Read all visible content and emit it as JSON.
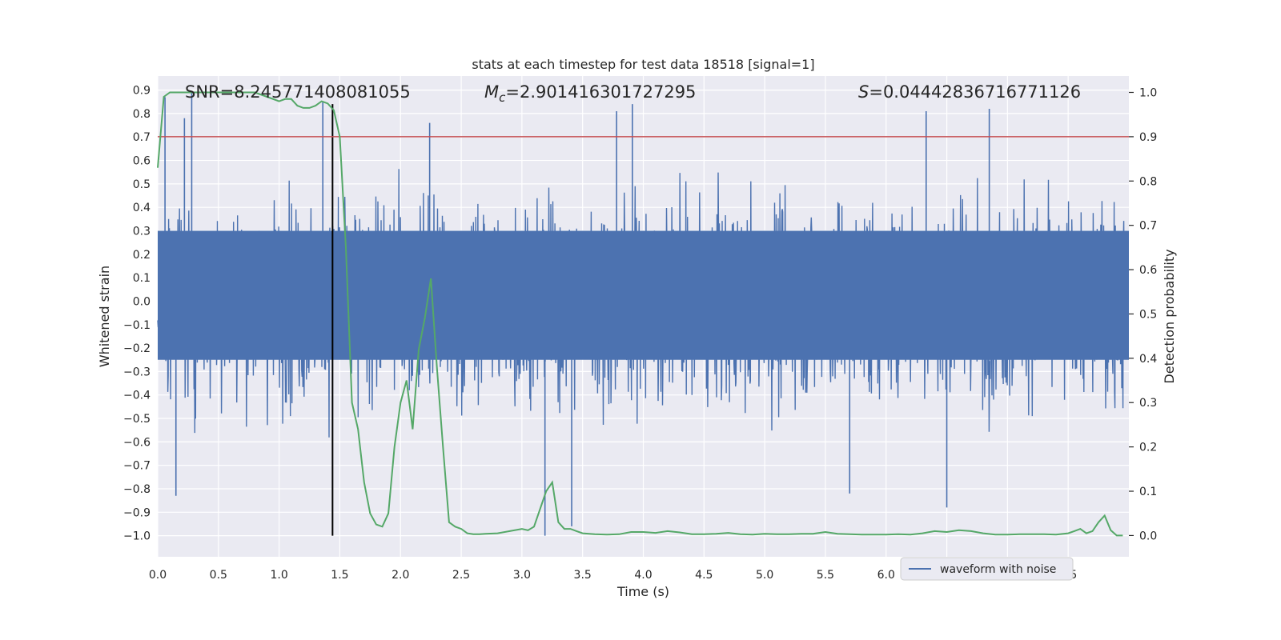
{
  "chart_data": {
    "type": "line",
    "title": "stats at each timestep for test data 18518 [signal=1]",
    "xlabel": "Time (s)",
    "ylabel": "Whitened strain",
    "y2label": "Detection probability",
    "xlim": [
      0.0,
      8.0
    ],
    "ylim": [
      -1.09,
      0.96
    ],
    "y2lim": [
      -0.048,
      1.037
    ],
    "x_ticks": [
      0.0,
      0.5,
      1.0,
      1.5,
      2.0,
      2.5,
      3.0,
      3.5,
      4.0,
      4.5,
      5.0,
      5.5,
      6.0,
      6.5,
      7.0,
      7.5
    ],
    "x_tick_labels": [
      "0.0",
      "0.5",
      "1.0",
      "1.5",
      "2.0",
      "2.5",
      "3.0",
      "3.5",
      "4.0",
      "4.5",
      "5.0",
      "5.5",
      "6.0",
      "6.5",
      "7.0",
      "7.5"
    ],
    "y_ticks": [
      0.9,
      0.8,
      0.7,
      0.6,
      0.5,
      0.4,
      0.3,
      0.2,
      0.1,
      0.0,
      -0.1,
      -0.2,
      -0.3,
      -0.4,
      -0.5,
      -0.6,
      -0.7,
      -0.8,
      -0.9,
      -1.0
    ],
    "y_tick_labels": [
      "0.9",
      "0.8",
      "0.7",
      "0.6",
      "0.5",
      "0.4",
      "0.3",
      "0.2",
      "0.1",
      "0.0",
      "−0.1",
      "−0.2",
      "−0.3",
      "−0.4",
      "−0.5",
      "−0.6",
      "−0.7",
      "−0.8",
      "−0.9",
      "−1.0"
    ],
    "y2_ticks": [
      1.0,
      0.9,
      0.8,
      0.7,
      0.6,
      0.5,
      0.4,
      0.3,
      0.2,
      0.1,
      0.0
    ],
    "y2_tick_labels": [
      "1.0",
      "0.9",
      "0.8",
      "0.7",
      "0.6",
      "0.5",
      "0.4",
      "0.3",
      "0.2",
      "0.1",
      "0.0"
    ],
    "grid": true,
    "legend_position": "lower-right",
    "annotations": {
      "snr": "SNR=8.245771408081055",
      "mc_symbol": "M",
      "mc_sub": "c",
      "mc_value": "=2.901416301727295",
      "s_symbol": "S",
      "s_value": "=0.04442836716771126"
    },
    "series": [
      {
        "name": "waveform with noise",
        "axis": "left",
        "color": "#4c72b0",
        "description": "whitened noisy strain, approx. 8 s sampled densely",
        "typical_envelope": [
          -0.45,
          0.45
        ],
        "notable_peaks": [
          {
            "x": 0.06,
            "y": 0.87
          },
          {
            "x": 0.28,
            "y": 0.89
          },
          {
            "x": 0.22,
            "y": 0.78
          },
          {
            "x": 1.36,
            "y": 0.85
          },
          {
            "x": 2.24,
            "y": 0.76
          },
          {
            "x": 3.91,
            "y": 0.84
          },
          {
            "x": 3.78,
            "y": 0.81
          },
          {
            "x": 6.85,
            "y": 0.82
          },
          {
            "x": 6.33,
            "y": 0.81
          },
          {
            "x": 0.15,
            "y": -0.83
          },
          {
            "x": 3.19,
            "y": -1.0
          },
          {
            "x": 3.41,
            "y": -0.96
          },
          {
            "x": 6.5,
            "y": -0.88
          },
          {
            "x": 5.7,
            "y": -0.82
          }
        ]
      },
      {
        "name": "detection probability",
        "axis": "right",
        "color": "#55a868",
        "x": [
          0.0,
          0.05,
          0.1,
          0.15,
          0.2,
          0.3,
          0.4,
          0.5,
          0.6,
          0.7,
          0.8,
          0.9,
          1.0,
          1.05,
          1.1,
          1.15,
          1.2,
          1.25,
          1.3,
          1.35,
          1.4,
          1.45,
          1.5,
          1.55,
          1.6,
          1.65,
          1.7,
          1.75,
          1.8,
          1.85,
          1.9,
          1.95,
          2.0,
          2.05,
          2.1,
          2.15,
          2.2,
          2.25,
          2.3,
          2.35,
          2.4,
          2.45,
          2.5,
          2.55,
          2.6,
          2.65,
          2.7,
          2.8,
          2.9,
          3.0,
          3.05,
          3.1,
          3.15,
          3.2,
          3.25,
          3.3,
          3.35,
          3.4,
          3.45,
          3.5,
          3.6,
          3.7,
          3.8,
          3.9,
          4.0,
          4.1,
          4.2,
          4.3,
          4.4,
          4.5,
          4.6,
          4.7,
          4.8,
          4.9,
          5.0,
          5.1,
          5.2,
          5.3,
          5.4,
          5.5,
          5.6,
          5.7,
          5.8,
          5.9,
          6.0,
          6.1,
          6.2,
          6.3,
          6.4,
          6.5,
          6.6,
          6.7,
          6.8,
          6.9,
          7.0,
          7.1,
          7.2,
          7.3,
          7.4,
          7.5,
          7.55,
          7.6,
          7.65,
          7.7,
          7.75,
          7.8,
          7.85,
          7.9,
          7.95
        ],
        "y": [
          0.83,
          0.99,
          1.0,
          1.0,
          1.0,
          1.0,
          1.0,
          1.0,
          1.0,
          1.0,
          1.0,
          0.99,
          0.98,
          0.985,
          0.985,
          0.97,
          0.965,
          0.965,
          0.97,
          0.98,
          0.975,
          0.96,
          0.9,
          0.65,
          0.3,
          0.24,
          0.12,
          0.05,
          0.025,
          0.02,
          0.05,
          0.2,
          0.3,
          0.35,
          0.24,
          0.42,
          0.49,
          0.58,
          0.38,
          0.2,
          0.03,
          0.02,
          0.015,
          0.005,
          0.003,
          0.003,
          0.004,
          0.005,
          0.01,
          0.015,
          0.012,
          0.02,
          0.06,
          0.1,
          0.12,
          0.03,
          0.015,
          0.015,
          0.01,
          0.005,
          0.003,
          0.002,
          0.003,
          0.008,
          0.008,
          0.006,
          0.01,
          0.007,
          0.003,
          0.003,
          0.004,
          0.006,
          0.003,
          0.002,
          0.004,
          0.003,
          0.003,
          0.004,
          0.004,
          0.008,
          0.004,
          0.003,
          0.002,
          0.002,
          0.002,
          0.003,
          0.002,
          0.005,
          0.01,
          0.008,
          0.012,
          0.01,
          0.005,
          0.002,
          0.002,
          0.003,
          0.003,
          0.003,
          0.002,
          0.005,
          0.01,
          0.015,
          0.005,
          0.01,
          0.03,
          0.045,
          0.012,
          0.0,
          0.0
        ]
      }
    ],
    "reference_lines": [
      {
        "name": "threshold",
        "axis": "right",
        "orientation": "horizontal",
        "value": 0.9,
        "color": "#c44e52"
      },
      {
        "name": "marker",
        "axis": "left",
        "orientation": "vertical",
        "x": 1.44,
        "from": -1.0,
        "to": 0.84,
        "color": "#000000"
      }
    ],
    "legend": [
      {
        "label": "waveform with noise",
        "color": "#4c72b0"
      }
    ]
  }
}
